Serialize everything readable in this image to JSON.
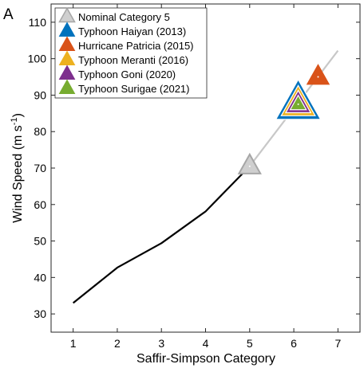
{
  "chart_data": {
    "type": "line",
    "panel_label": "A",
    "xlabel": "Saffir-Simpson Category",
    "ylabel_main": "Wind Speed (m s",
    "ylabel_sup": "-1",
    "ylabel_close": ")",
    "xlim": [
      0.5,
      7.5
    ],
    "ylim": [
      25,
      115
    ],
    "xticks": [
      1,
      2,
      3,
      4,
      5,
      6,
      7
    ],
    "yticks": [
      30,
      40,
      50,
      60,
      70,
      80,
      90,
      100,
      110
    ],
    "grid": false,
    "legend_position": "top-left",
    "category_curve": {
      "color": "#000000",
      "x": [
        1,
        2,
        3,
        4,
        5
      ],
      "y": [
        33,
        42.7,
        49.4,
        58.1,
        70.5
      ]
    },
    "extrapolation": {
      "color": "#c8c8c8",
      "x": [
        5,
        7
      ],
      "y": [
        70.5,
        102.2
      ]
    },
    "storms": [
      {
        "name": "Nominal Category 5",
        "x": 5.0,
        "y": 70.5,
        "color": "#a6a6a6"
      },
      {
        "name": "Typhoon Haiyan (2013)",
        "x": 6.1,
        "y": 87.5,
        "color": "#0072bd"
      },
      {
        "name": "Hurricane Patricia (2015)",
        "x": 6.55,
        "y": 95.0,
        "color": "#d95319"
      },
      {
        "name": "Typhoon Meranti (2016)",
        "x": 6.1,
        "y": 87.5,
        "color": "#edb120"
      },
      {
        "name": "Typhoon Goni (2020)",
        "x": 6.1,
        "y": 87.5,
        "color": "#7e2f8e"
      },
      {
        "name": "Typhoon Surigae (2021)",
        "x": 6.1,
        "y": 87.5,
        "color": "#77ac30"
      }
    ]
  }
}
